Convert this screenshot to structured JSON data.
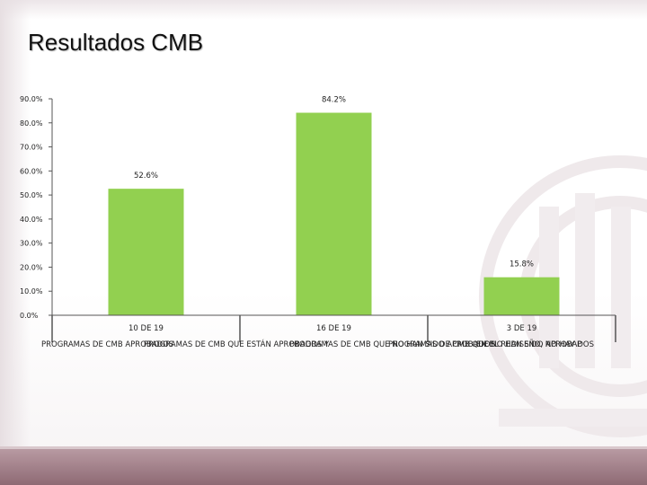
{
  "slide": {
    "title": "Resultados CMB"
  },
  "colors": {
    "bar": "#92d050",
    "axis": "#555555",
    "band": "#9c7780"
  },
  "chart_data": {
    "type": "bar",
    "title": "",
    "xlabel": "",
    "ylabel": "",
    "ylim": [
      0,
      90
    ],
    "ytick_step": 10,
    "ytick_labels": [
      "0.0%",
      "10.0%",
      "20.0%",
      "30.0%",
      "40.0%",
      "50.0%",
      "60.0%",
      "70.0%",
      "80.0%",
      "90.0%"
    ],
    "categories": [
      "10 DE 19",
      "16 DE 19",
      "3 DE 19"
    ],
    "values": [
      52.6,
      84.2,
      15.8
    ],
    "value_labels": [
      "52.6%",
      "84.2%",
      "15.8%"
    ],
    "series_labels": [
      "PROGRAMAS DE CMB APROBADOS",
      "PROGRAMAS DE CMB QUE ESTÁN APROBADOS Y",
      "PROGRAMAS DE CMB QUE NO HAN SIDO APROBADOS",
      "PROGRAMAS DE CMB QUE NO HAN SIDO APROBADOS",
      "EN EL REDISEÑO, NO HAY P"
    ],
    "grid": false,
    "legend": "none"
  }
}
